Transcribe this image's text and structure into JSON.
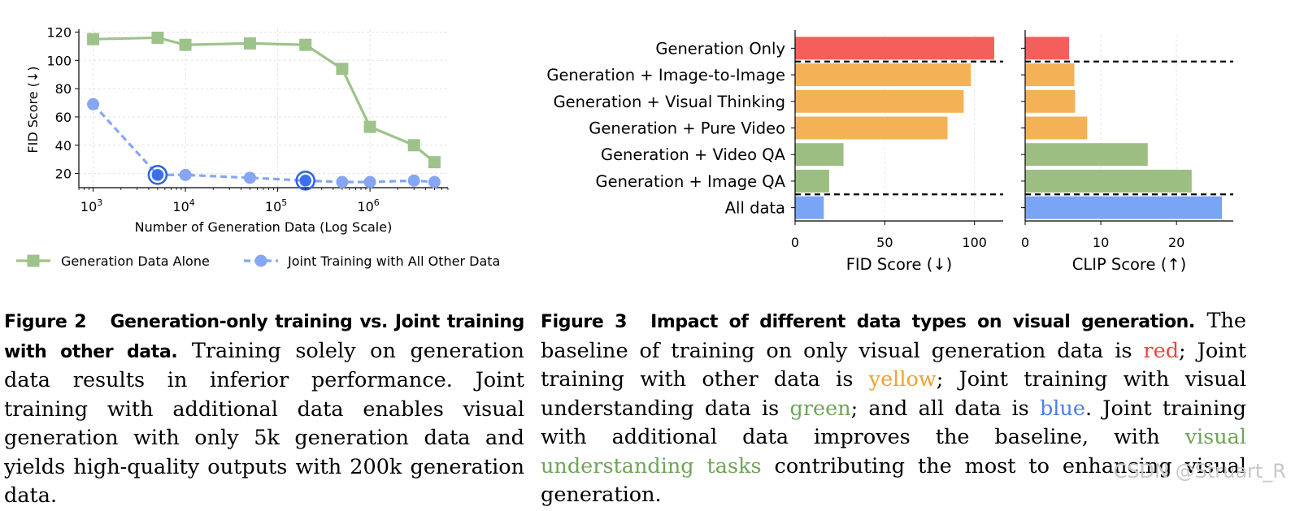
{
  "chart_data": [
    {
      "type": "line",
      "xlabel": "Number of Generation Data (Log Scale)",
      "ylabel": "FID Score (↓)",
      "xscale": "log",
      "xlim": [
        700,
        7000000
      ],
      "ylim": [
        10,
        122
      ],
      "xticks": [
        {
          "value": 1000,
          "base": "10",
          "exp": "3"
        },
        {
          "value": 10000,
          "base": "10",
          "exp": "4"
        },
        {
          "value": 100000,
          "base": "10",
          "exp": "5"
        },
        {
          "value": 1000000,
          "base": "10",
          "exp": "6"
        }
      ],
      "yticks": [
        20,
        40,
        60,
        80,
        100,
        120
      ],
      "grid": true,
      "legend_placement": "bottom",
      "series": [
        {
          "name": "Generation Data Alone",
          "color": "#9dc38a",
          "marker": "square",
          "linestyle": "solid",
          "x": [
            1000,
            5000,
            10000,
            50000,
            200000,
            500000,
            1000000,
            3000000,
            5000000
          ],
          "y": [
            115,
            116,
            111,
            112,
            111,
            94,
            53,
            40,
            28
          ]
        },
        {
          "name": "Joint Training with All Other Data",
          "color": "#86a6f5",
          "marker": "circle",
          "linestyle": "dashed",
          "x": [
            1000,
            5000,
            10000,
            50000,
            200000,
            500000,
            1000000,
            3000000,
            5000000
          ],
          "y": [
            69,
            19,
            19,
            17,
            15,
            14,
            14,
            15,
            14
          ],
          "highlighted_x": [
            5000,
            200000
          ]
        }
      ]
    },
    {
      "type": "bar",
      "orientation": "horizontal",
      "categories": [
        "Generation Only",
        "Generation + Image-to-Image",
        "Generation + Visual Thinking",
        "Generation + Pure Video",
        "Generation + Video QA",
        "Generation + Image QA",
        "All data"
      ],
      "bar_colors": [
        "#f45f5c",
        "#f5b155",
        "#f5b155",
        "#f5b155",
        "#9cbe82",
        "#9cbe82",
        "#7aa4f6"
      ],
      "group_separators_after": [
        0,
        5
      ],
      "panels": [
        {
          "xlabel": "FID Score (↓)",
          "xlim": [
            0,
            116
          ],
          "xticks": [
            0,
            50,
            100
          ],
          "values": [
            111,
            98,
            94,
            85,
            27,
            19,
            16
          ]
        },
        {
          "xlabel": "CLIP Score (↑)",
          "xlim": [
            0,
            27.5
          ],
          "xticks": [
            0,
            10,
            20
          ],
          "values": [
            5.8,
            6.5,
            6.6,
            8.2,
            16.2,
            22.0,
            26.0
          ]
        }
      ]
    }
  ],
  "captions": {
    "fig2": {
      "label": "Figure 2",
      "title": "Generation-only training vs. Joint training with other data.",
      "text": "Training solely on generation data results in inferior performance. Joint training with additional data enables visual generation with only 5k generation data and yields high-quality outputs with 200k generation data."
    },
    "fig3": {
      "label": "Figure 3",
      "title": "Impact of different data types on visual generation.",
      "t1": "The baseline of training on only visual generation data is",
      "red": "red",
      "t2": "; Joint training with other data is",
      "yellow": "yellow",
      "t3": "; Joint training with visual understanding data is",
      "green": "green",
      "t4": "; and all data is",
      "blue": "blue",
      "t5": ". Joint training with additional data improves the baseline, with",
      "vut": "visual understanding tasks",
      "t6": "contributing the most to enhancing visual generation."
    }
  },
  "watermark": "CSDN @Struart_R"
}
